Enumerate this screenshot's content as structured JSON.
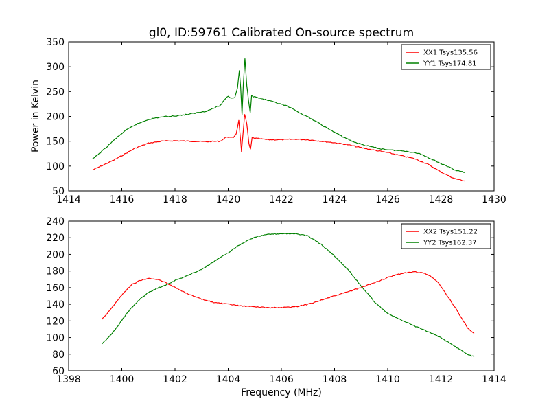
{
  "title": "gl0, ID:59761 Calibrated On-source spectrum",
  "colors": {
    "red": "#ff0000",
    "green": "#008000"
  },
  "chart_data": [
    {
      "type": "line",
      "ylabel": "Power in Kelvin",
      "xlabel": "",
      "xlim": [
        1414,
        1430
      ],
      "ylim": [
        50,
        350
      ],
      "xticks": [
        1414,
        1416,
        1418,
        1420,
        1422,
        1424,
        1426,
        1428,
        1430
      ],
      "yticks": [
        50,
        100,
        150,
        200,
        250,
        300,
        350
      ],
      "legend_position": "top-right",
      "series": [
        {
          "name": "XX1 Tsys135.56",
          "color": "red",
          "points": [
            [
              1414.9,
              92
            ],
            [
              1415.3,
              102
            ],
            [
              1415.7,
              112
            ],
            [
              1416.1,
              124
            ],
            [
              1416.5,
              136
            ],
            [
              1417.0,
              146
            ],
            [
              1417.5,
              150
            ],
            [
              1418.0,
              151
            ],
            [
              1418.6,
              150
            ],
            [
              1419.2,
              149
            ],
            [
              1419.7,
              150
            ],
            [
              1419.95,
              159
            ],
            [
              1420.1,
              157
            ],
            [
              1420.2,
              158
            ],
            [
              1420.3,
              165
            ],
            [
              1420.4,
              192
            ],
            [
              1420.47,
              150
            ],
            [
              1420.5,
              128
            ],
            [
              1420.55,
              160
            ],
            [
              1420.62,
              205
            ],
            [
              1420.7,
              185
            ],
            [
              1420.78,
              145
            ],
            [
              1420.84,
              133
            ],
            [
              1420.9,
              157
            ],
            [
              1421.0,
              156
            ],
            [
              1421.5,
              153
            ],
            [
              1422.0,
              153
            ],
            [
              1422.5,
              154
            ],
            [
              1423.0,
              153
            ],
            [
              1423.5,
              150
            ],
            [
              1424.0,
              147
            ],
            [
              1424.5,
              143
            ],
            [
              1425.0,
              137
            ],
            [
              1425.5,
              132
            ],
            [
              1426.0,
              127
            ],
            [
              1426.5,
              121
            ],
            [
              1427.0,
              115
            ],
            [
              1427.5,
              104
            ],
            [
              1428.0,
              88
            ],
            [
              1428.5,
              75
            ],
            [
              1428.9,
              70
            ]
          ]
        },
        {
          "name": "YY1 Tsys174.81",
          "color": "green",
          "points": [
            [
              1414.9,
              114
            ],
            [
              1415.3,
              132
            ],
            [
              1415.7,
              152
            ],
            [
              1416.1,
              170
            ],
            [
              1416.5,
              183
            ],
            [
              1417.0,
              194
            ],
            [
              1417.5,
              199
            ],
            [
              1418.0,
              201
            ],
            [
              1418.6,
              205
            ],
            [
              1419.2,
              211
            ],
            [
              1419.7,
              222
            ],
            [
              1419.9,
              236
            ],
            [
              1420.0,
              241
            ],
            [
              1420.1,
              237
            ],
            [
              1420.25,
              238
            ],
            [
              1420.35,
              258
            ],
            [
              1420.42,
              292
            ],
            [
              1420.47,
              258
            ],
            [
              1420.52,
              202
            ],
            [
              1420.57,
              265
            ],
            [
              1420.63,
              316
            ],
            [
              1420.7,
              262
            ],
            [
              1420.76,
              235
            ],
            [
              1420.83,
              207
            ],
            [
              1420.88,
              243
            ],
            [
              1420.95,
              240
            ],
            [
              1421.3,
              235
            ],
            [
              1421.7,
              229
            ],
            [
              1422.2,
              221
            ],
            [
              1422.7,
              207
            ],
            [
              1423.2,
              193
            ],
            [
              1423.7,
              177
            ],
            [
              1424.2,
              162
            ],
            [
              1424.7,
              149
            ],
            [
              1425.2,
              141
            ],
            [
              1425.7,
              135
            ],
            [
              1426.2,
              132
            ],
            [
              1426.7,
              130
            ],
            [
              1427.2,
              125
            ],
            [
              1427.7,
              113
            ],
            [
              1428.2,
              100
            ],
            [
              1428.6,
              91
            ],
            [
              1428.9,
              87
            ]
          ]
        }
      ]
    },
    {
      "type": "line",
      "ylabel": "",
      "xlabel": "Frequency (MHz)",
      "xlim": [
        1398,
        1414
      ],
      "ylim": [
        60,
        240
      ],
      "xticks": [
        1398,
        1400,
        1402,
        1404,
        1406,
        1408,
        1410,
        1412,
        1414
      ],
      "yticks": [
        60,
        80,
        100,
        120,
        140,
        160,
        180,
        200,
        220,
        240
      ],
      "legend_position": "top-right",
      "series": [
        {
          "name": "XX2 Tsys151.22",
          "color": "red",
          "points": [
            [
              1399.25,
              122
            ],
            [
              1399.5,
              131
            ],
            [
              1399.8,
              143
            ],
            [
              1400.1,
              155
            ],
            [
              1400.4,
              164
            ],
            [
              1400.7,
              169
            ],
            [
              1401.0,
              171
            ],
            [
              1401.3,
              170
            ],
            [
              1401.6,
              167
            ],
            [
              1401.9,
              162
            ],
            [
              1402.2,
              157
            ],
            [
              1402.6,
              151
            ],
            [
              1403.0,
              146
            ],
            [
              1403.5,
              142
            ],
            [
              1404.0,
              140
            ],
            [
              1404.5,
              138
            ],
            [
              1405.0,
              137
            ],
            [
              1405.5,
              136
            ],
            [
              1406.0,
              136
            ],
            [
              1406.5,
              137
            ],
            [
              1407.0,
              140
            ],
            [
              1407.5,
              145
            ],
            [
              1408.0,
              150
            ],
            [
              1408.5,
              155
            ],
            [
              1409.0,
              160
            ],
            [
              1409.5,
              166
            ],
            [
              1410.0,
              172
            ],
            [
              1410.5,
              177
            ],
            [
              1411.0,
              179
            ],
            [
              1411.3,
              178
            ],
            [
              1411.6,
              174
            ],
            [
              1411.9,
              166
            ],
            [
              1412.2,
              152
            ],
            [
              1412.5,
              138
            ],
            [
              1412.8,
              122
            ],
            [
              1413.0,
              112
            ],
            [
              1413.25,
              105
            ]
          ]
        },
        {
          "name": "YY2 Tsys162.37",
          "color": "green",
          "points": [
            [
              1399.25,
              92
            ],
            [
              1399.5,
              100
            ],
            [
              1399.8,
              112
            ],
            [
              1400.1,
              125
            ],
            [
              1400.4,
              137
            ],
            [
              1400.7,
              147
            ],
            [
              1401.0,
              154
            ],
            [
              1401.3,
              159
            ],
            [
              1401.7,
              164
            ],
            [
              1402.1,
              170
            ],
            [
              1402.5,
              175
            ],
            [
              1403.0,
              182
            ],
            [
              1403.5,
              192
            ],
            [
              1404.0,
              202
            ],
            [
              1404.5,
              213
            ],
            [
              1405.0,
              221
            ],
            [
              1405.5,
              224
            ],
            [
              1406.0,
              225
            ],
            [
              1406.5,
              225
            ],
            [
              1407.0,
              222
            ],
            [
              1407.5,
              212
            ],
            [
              1408.0,
              198
            ],
            [
              1408.5,
              182
            ],
            [
              1409.0,
              162
            ],
            [
              1409.5,
              143
            ],
            [
              1410.0,
              129
            ],
            [
              1410.5,
              121
            ],
            [
              1411.0,
              114
            ],
            [
              1411.5,
              107
            ],
            [
              1412.0,
              100
            ],
            [
              1412.5,
              90
            ],
            [
              1413.0,
              80
            ],
            [
              1413.25,
              77
            ]
          ]
        }
      ]
    }
  ]
}
